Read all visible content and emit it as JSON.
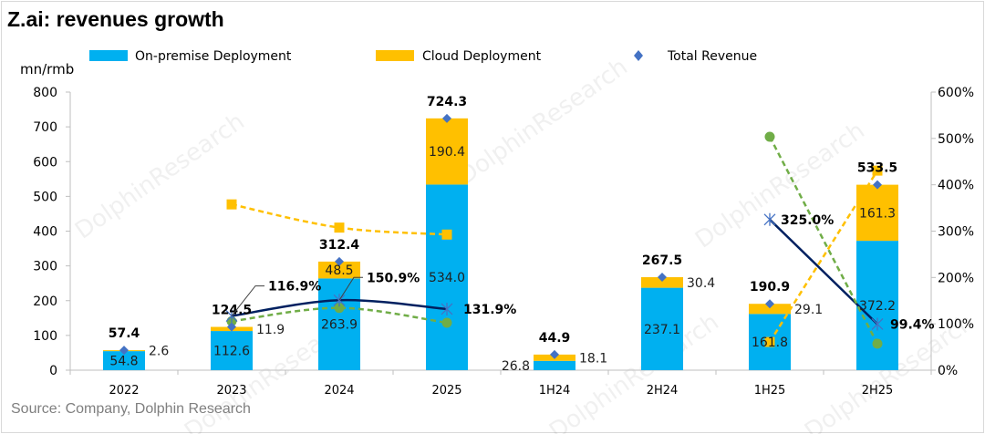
{
  "title": "Z.ai: revenues growth",
  "source": "Source:  Company, Dolphin Research",
  "watermark": "DolphinResearch",
  "colors": {
    "onprem": "#00B0F0",
    "cloud": "#FFC000",
    "total": "#4472C4",
    "total_growth": "#002060",
    "onprem_growth": "#70AD47",
    "cloud_growth": "#FFC000"
  },
  "chart_data": {
    "type": "bar",
    "stacked": true,
    "title": "Z.ai: revenues growth",
    "ylabel": "mn/rmb",
    "ylim": [
      0,
      800
    ],
    "yticks": [
      "0",
      "100",
      "200",
      "300",
      "400",
      "500",
      "600",
      "700",
      "800"
    ],
    "y2lim": [
      0,
      600
    ],
    "y2ticks": [
      "0%",
      "100%",
      "200%",
      "300%",
      "400%",
      "500%",
      "600%"
    ],
    "categories": [
      "2022",
      "2023",
      "2024",
      "2025",
      "1H24",
      "2H24",
      "1H25",
      "2H25"
    ],
    "legend_position": "top",
    "grid": false,
    "series": [
      {
        "name": "On-premise Deployment",
        "type": "bar",
        "values": [
          54.8,
          112.6,
          263.9,
          534.0,
          26.8,
          237.1,
          161.8,
          372.2
        ],
        "labels": [
          "54.8",
          "112.6",
          "263.9",
          "534.0",
          "26.8",
          "237.1",
          "161.8",
          "372.2"
        ]
      },
      {
        "name": "Cloud Deployment",
        "type": "bar",
        "values": [
          2.6,
          11.9,
          48.5,
          190.4,
          18.1,
          30.4,
          29.1,
          161.3
        ],
        "labels": [
          "2.6",
          "11.9",
          "48.5",
          "190.4",
          "18.1",
          "30.4",
          "29.1",
          "161.3"
        ]
      },
      {
        "name": "Total Revenue",
        "type": "scatter",
        "marker": "diamond",
        "values": [
          57.4,
          124.5,
          312.4,
          724.3,
          44.9,
          267.5,
          190.9,
          533.5
        ],
        "labels": [
          "57.4",
          "124.5",
          "312.4",
          "724.3",
          "44.9",
          "267.5",
          "190.9",
          "533.5"
        ]
      },
      {
        "type": "line",
        "axis": "right",
        "style": "solid",
        "marker": "x",
        "values": [
          null,
          116.9,
          150.9,
          131.9,
          null,
          null,
          325.0,
          99.4
        ],
        "labels": [
          null,
          "116.9%",
          "150.9%",
          "131.9%",
          null,
          null,
          "325.0%",
          "99.4%"
        ]
      },
      {
        "type": "line",
        "axis": "right",
        "style": "dashed",
        "marker": "circle",
        "values": [
          null,
          105.5,
          134.4,
          102.3,
          null,
          null,
          503.7,
          57.0
        ]
      },
      {
        "type": "line",
        "axis": "right",
        "style": "dashed",
        "marker": "square",
        "values": [
          null,
          357.7,
          307.6,
          292.6,
          null,
          null,
          60.8,
          430.6
        ]
      }
    ]
  }
}
